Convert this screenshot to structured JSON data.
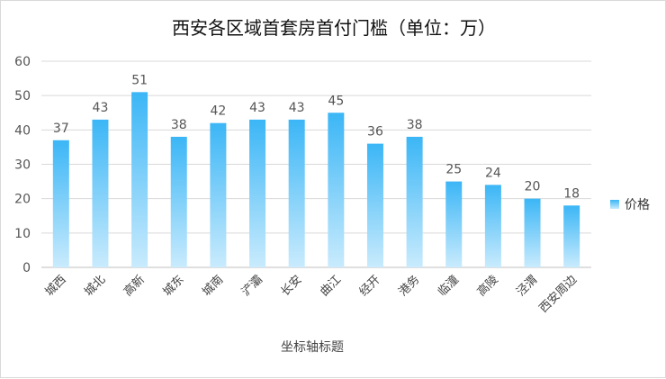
{
  "chart_data": {
    "type": "bar",
    "title": "西安各区域首套房首付门槛（单位：万）",
    "xlabel": "坐标轴标题",
    "ylabel": "",
    "ylim": [
      0,
      60
    ],
    "yticks": [
      0,
      10,
      20,
      30,
      40,
      50,
      60
    ],
    "grid": true,
    "legend_position": "right",
    "categories": [
      "城西",
      "城北",
      "高新",
      "城东",
      "城南",
      "浐灞",
      "长安",
      "曲江",
      "经开",
      "港务",
      "临潼",
      "高陵",
      "泾渭",
      "西安周边"
    ],
    "series": [
      {
        "name": "价格",
        "values": [
          37,
          43,
          51,
          38,
          42,
          43,
          43,
          45,
          36,
          38,
          25,
          24,
          20,
          18
        ]
      }
    ],
    "colors": {
      "bar_top": "#3bb6f6",
      "bar_bottom": "#c9ebfd",
      "grid": "#d9d9d9"
    }
  }
}
